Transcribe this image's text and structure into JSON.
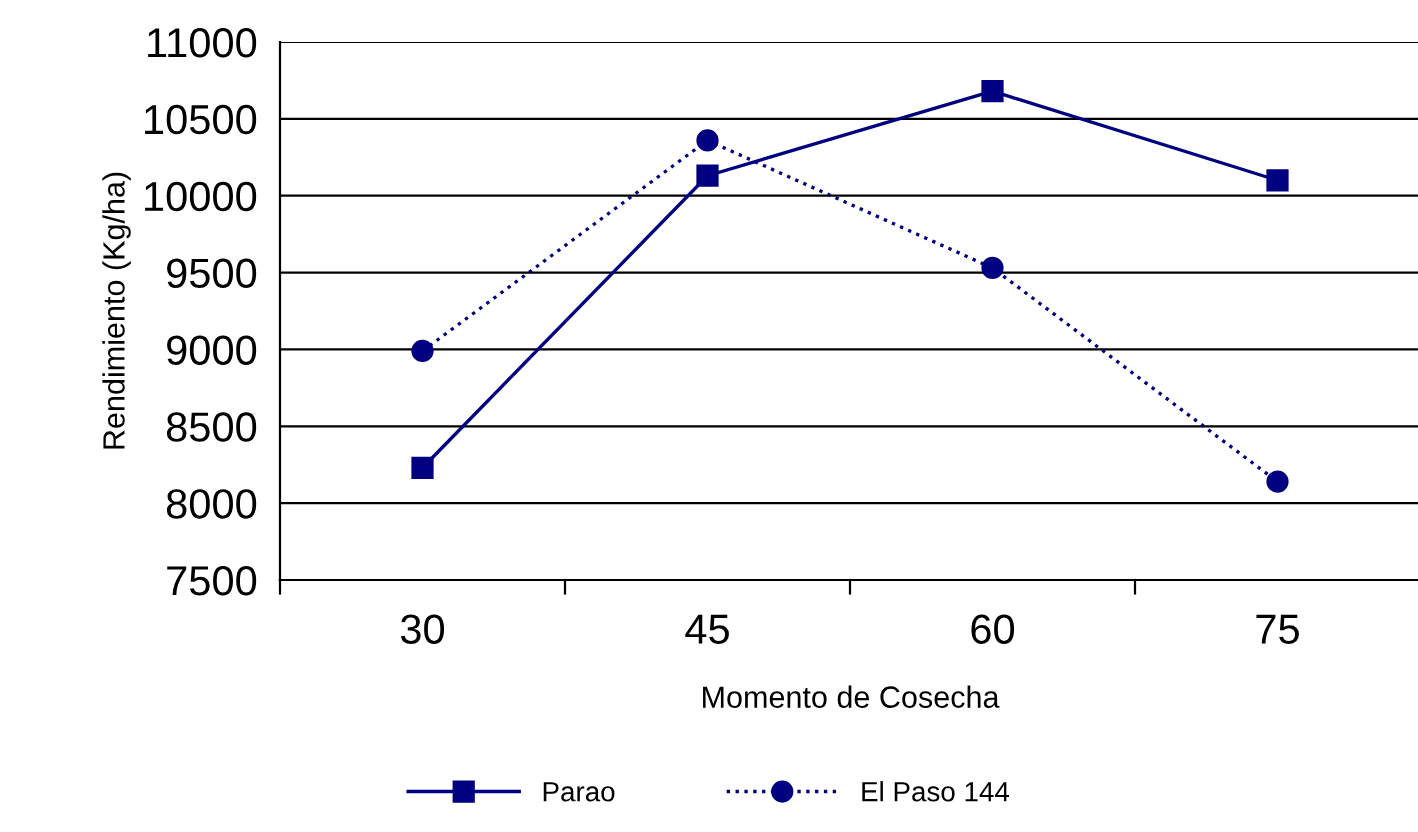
{
  "chart_data": {
    "type": "line",
    "xlabel": "Momento de Cosecha",
    "ylabel": "Rendimiento (Kg/ha)",
    "categories": [
      "30",
      "45",
      "60",
      "75"
    ],
    "series": [
      {
        "name": "Parao",
        "color": "#000080",
        "values": [
          8230,
          10130,
          10680,
          10100
        ],
        "marker": "square",
        "line_style": "solid"
      },
      {
        "name": "El Paso 144",
        "color": "#000080",
        "values": [
          8990,
          10360,
          9530,
          8140
        ],
        "marker": "circle",
        "line_style": "dotted"
      }
    ],
    "ylim": [
      7500,
      11000
    ],
    "yticks": [
      7500,
      8000,
      8500,
      9000,
      9500,
      10000,
      10500,
      11000
    ],
    "grid": "y",
    "legend": "bottom"
  }
}
